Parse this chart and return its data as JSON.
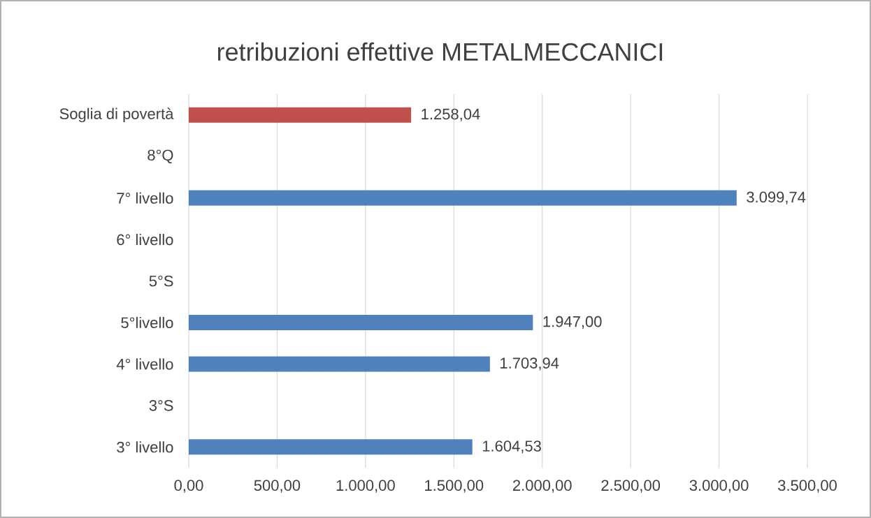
{
  "chart_data": {
    "type": "bar",
    "orientation": "horizontal",
    "title": "retribuzioni effettive METALMECCANICI",
    "categories": [
      "Soglia di povertà",
      "8°Q",
      "7° livello",
      "6° livello",
      "5°S",
      "5°livello",
      "4° livello",
      "3°S",
      "3° livello"
    ],
    "values": [
      1258.04,
      null,
      3099.74,
      null,
      null,
      1947.0,
      1703.94,
      null,
      1604.53
    ],
    "value_labels": [
      "1.258,04",
      null,
      "3.099,74",
      null,
      null,
      "1.947,00",
      "1.703,94",
      null,
      "1.604,53"
    ],
    "colors": [
      "#c0504d",
      "#4f81bd",
      "#4f81bd",
      "#4f81bd",
      "#4f81bd",
      "#4f81bd",
      "#4f81bd",
      "#4f81bd",
      "#4f81bd"
    ],
    "xlim": [
      0,
      3500
    ],
    "xticks": [
      {
        "value": 0,
        "label": "0,00"
      },
      {
        "value": 500,
        "label": "500,00"
      },
      {
        "value": 1000,
        "label": "1.000,00"
      },
      {
        "value": 1500,
        "label": "1.500,00"
      },
      {
        "value": 2000,
        "label": "2.000,00"
      },
      {
        "value": 2500,
        "label": "2.500,00"
      },
      {
        "value": 3000,
        "label": "3.000,00"
      },
      {
        "value": 3500,
        "label": "3.500,00"
      }
    ],
    "grid": "x"
  }
}
